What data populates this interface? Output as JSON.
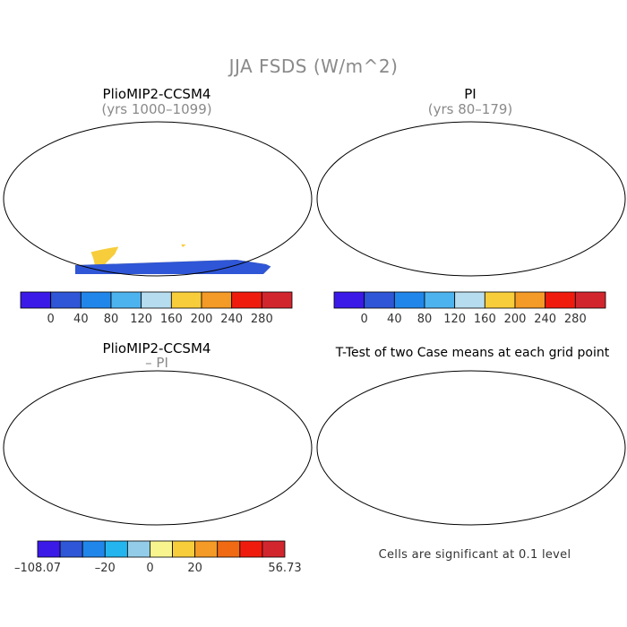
{
  "figure": {
    "title": "JJA FSDS (W/m^2)",
    "footnote": "Cells are significant at 0.1 level"
  },
  "panels": [
    {
      "id": "pliomip2",
      "title": "PlioMIP2-CCSM4",
      "subtitle": "(yrs 1000–1099)",
      "kind": "absolute"
    },
    {
      "id": "pi",
      "title": "PI",
      "subtitle": "(yrs 80–179)",
      "kind": "absolute"
    },
    {
      "id": "diff",
      "title": "PlioMIP2-CCSM4",
      "subtitle": "– PI",
      "kind": "difference"
    },
    {
      "id": "ttest",
      "title": "T-Test of two Case means at each grid point",
      "subtitle": "",
      "kind": "significance"
    }
  ],
  "colorbars": {
    "absolute": {
      "colors": [
        "#3b1ae8",
        "#2f56d6",
        "#2186ea",
        "#4db3ee",
        "#b6dcef",
        "#f7cd3b",
        "#f49a26",
        "#ef1c0e",
        "#d2262e"
      ],
      "tick_labels": [
        "0",
        "40",
        "80",
        "120",
        "160",
        "200",
        "240",
        "280"
      ]
    },
    "difference": {
      "colors": [
        "#3b1ae8",
        "#2f56d6",
        "#2186ea",
        "#24b5ee",
        "#93cce8",
        "#f8f58e",
        "#f7cd3b",
        "#f49a26",
        "#ef6a13",
        "#ef1c0e",
        "#d2262e"
      ],
      "tick_labels": [
        "–108.07",
        "–20",
        "0",
        "20",
        "56.73"
      ]
    }
  },
  "significance_color": "#ee1111"
}
